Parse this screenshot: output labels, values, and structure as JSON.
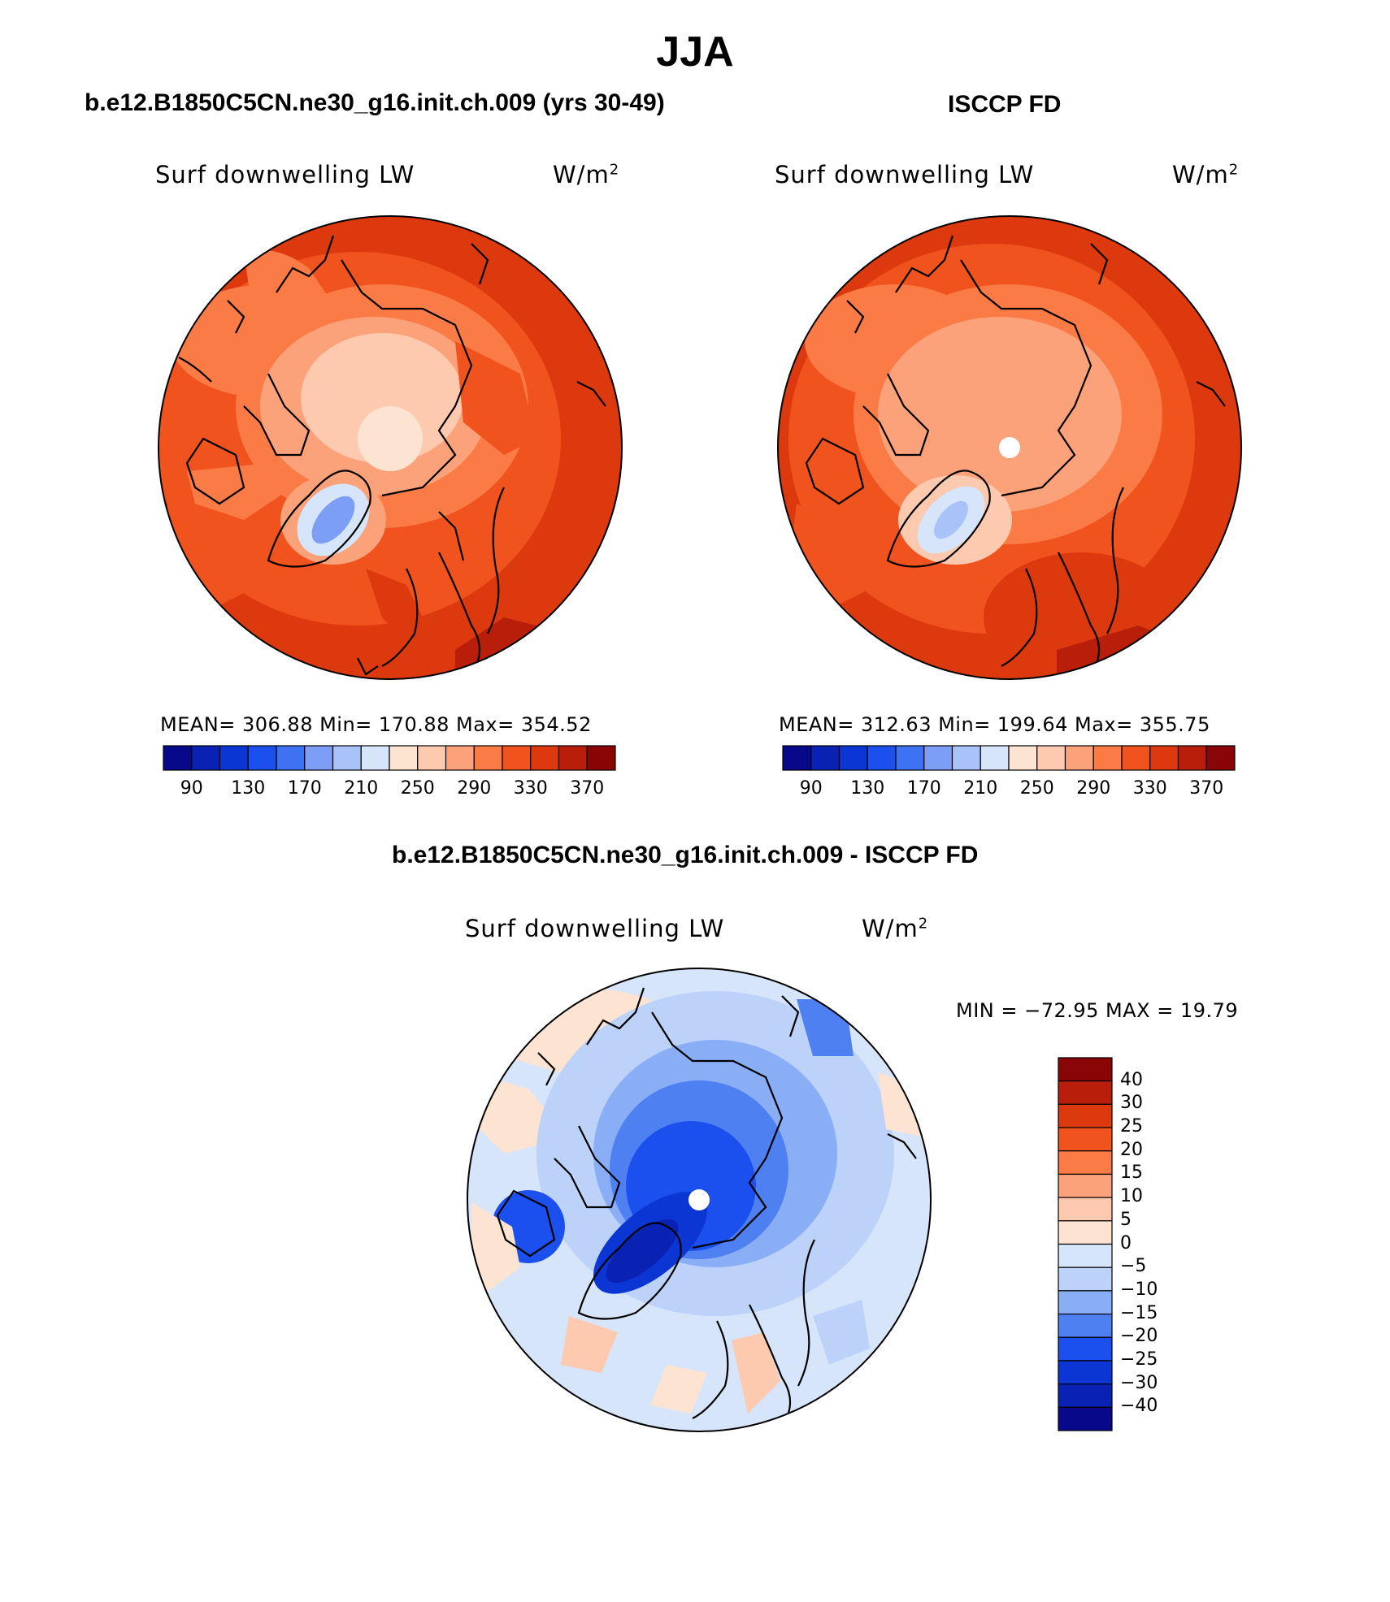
{
  "figure": {
    "title": "JJA"
  },
  "panels": [
    {
      "title": "b.e12.B1850C5CN.ne30_g16.init.ch.009 (yrs 30-49)",
      "variable": "Surf downwelling LW",
      "units": "W/m",
      "units_superscript": "2",
      "stats": "MEAN= 306.88   Min= 170.88   Max= 354.52"
    },
    {
      "title": "ISCCP FD",
      "variable": "Surf downwelling LW",
      "units": "W/m",
      "units_superscript": "2",
      "stats": "MEAN= 312.63   Min= 199.64   Max= 355.75"
    },
    {
      "title": "b.e12.B1850C5CN.ne30_g16.init.ch.009 - ISCCP FD",
      "variable": "Surf downwelling LW",
      "units": "W/m",
      "units_superscript": "2",
      "stats": "MIN = −72.95 MAX =  19.79"
    }
  ],
  "colorbar_abs": {
    "tick_labels": [
      "90",
      "130",
      "170",
      "210",
      "250",
      "290",
      "330",
      "370"
    ],
    "colors": [
      "#08088a",
      "#0a22b4",
      "#0c36d4",
      "#1b4fee",
      "#3f72f2",
      "#7c9ef5",
      "#a9c2f8",
      "#d6e5fa",
      "#fde3d2",
      "#fdcab0",
      "#fca27a",
      "#fb7b46",
      "#f1531e",
      "#dc3a0e",
      "#b81e0a",
      "#8a0505"
    ]
  },
  "colorbar_diff": {
    "tick_labels": [
      "40",
      "30",
      "25",
      "20",
      "15",
      "10",
      "5",
      "0",
      "−5",
      "−10",
      "−15",
      "−20",
      "−25",
      "−30",
      "−40"
    ],
    "colors_top_to_bottom": [
      "#8a0505",
      "#b81e0a",
      "#dc3a0e",
      "#f1531e",
      "#fb7b46",
      "#fca27a",
      "#fdcab0",
      "#fde3d2",
      "#d6e5fa",
      "#bcd2f8",
      "#8aaef5",
      "#4f80f1",
      "#1b4fee",
      "#0c36d4",
      "#0a22b4",
      "#08088a"
    ]
  }
}
